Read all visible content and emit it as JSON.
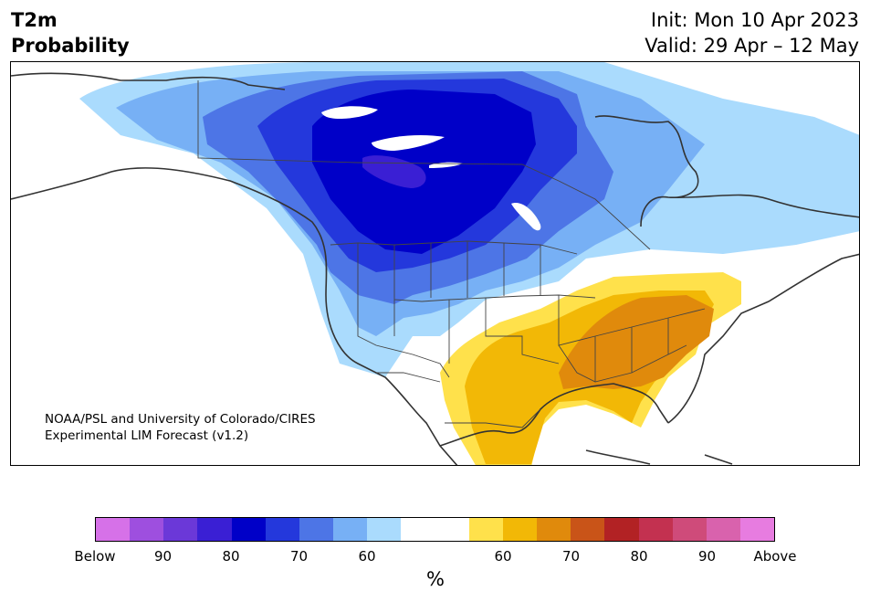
{
  "title": {
    "line1": "T2m",
    "line2": "Probability"
  },
  "info": {
    "init": "Init: Mon 10 Apr 2023",
    "valid": "Valid: 29 Apr – 12 May"
  },
  "credit": {
    "line1": "NOAA/PSL and University of Colorado/CIRES",
    "line2": "Experimental LIM Forecast (v1.2)"
  },
  "colorbar": {
    "colors": [
      "#d671e8",
      "#9e4fdf",
      "#6b38d8",
      "#3a1fd4",
      "#0000c8",
      "#2438dc",
      "#4d75e6",
      "#77b0f5",
      "#aadbfd",
      "#ffffff",
      "#ffffff",
      "#ffe14b",
      "#f2b806",
      "#e08a0c",
      "#c95418",
      "#b22224",
      "#c33150",
      "#cf4b7a",
      "#d962ad",
      "#e77ce0"
    ],
    "ticks": [
      "Below",
      "90",
      "80",
      "70",
      "60",
      "60",
      "70",
      "80",
      "90",
      "Above"
    ],
    "unit": "%"
  },
  "map_colors": {
    "below_60": "#aadbfd",
    "below_70": "#77b0f5",
    "below_75": "#4d75e6",
    "below_80": "#2438dc",
    "below_90": "#0000c8",
    "below_95": "#3a1fd4",
    "above_60": "#ffe14b",
    "above_70": "#f2b806",
    "above_75": "#e08a0c"
  }
}
